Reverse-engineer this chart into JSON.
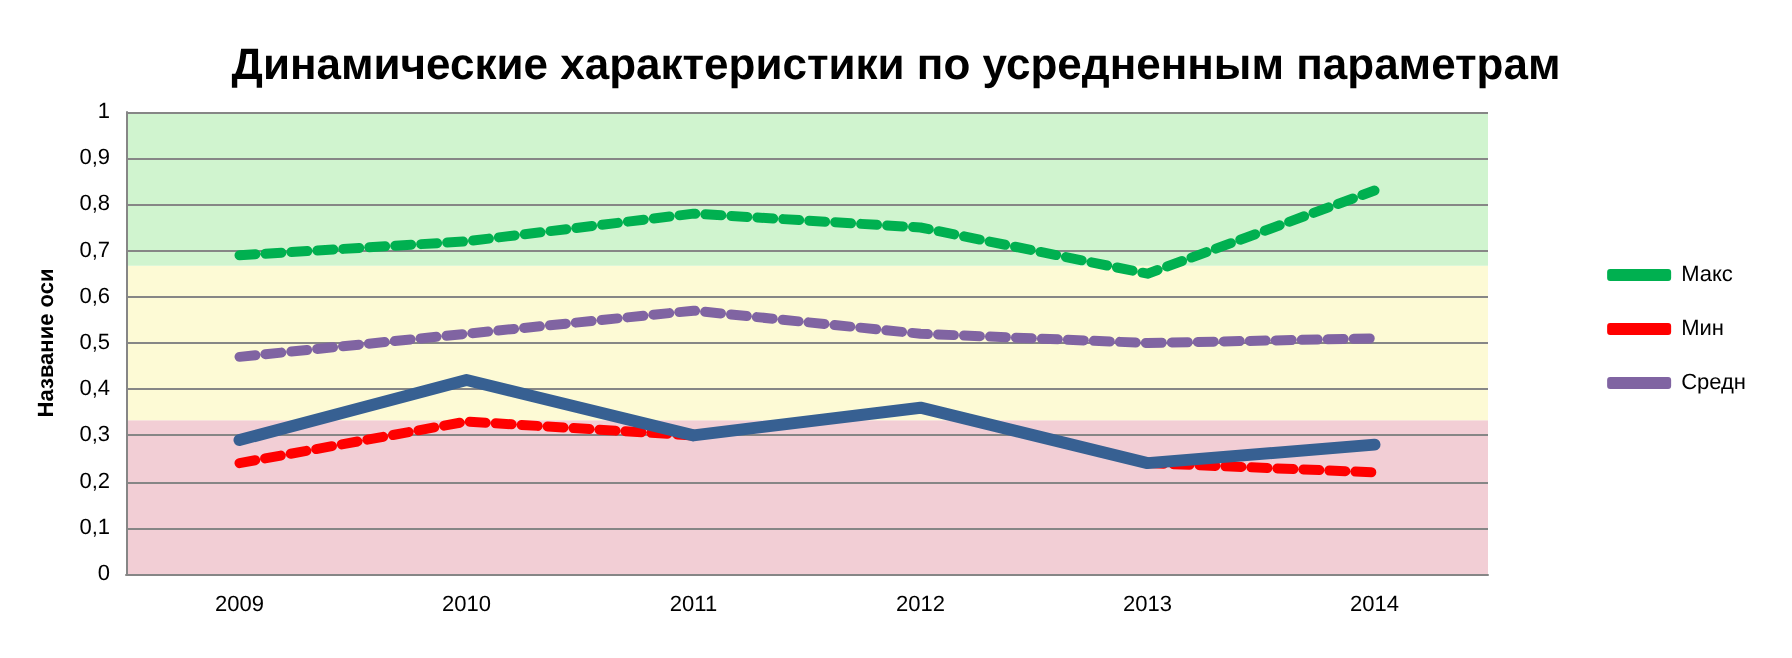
{
  "chart_data": {
    "type": "line",
    "title": "Динамические характеристики по усредненным параметрам",
    "ylabel": "Название оси",
    "categories": [
      "2009",
      "2010",
      "2011",
      "2012",
      "2013",
      "2014"
    ],
    "series": [
      {
        "name": "Макс",
        "color": "#00b050",
        "line_style": "dashed",
        "values": [
          0.69,
          0.72,
          0.78,
          0.75,
          0.65,
          0.83
        ]
      },
      {
        "name": "Мин",
        "color": "#ff0000",
        "line_style": "dashed",
        "values": [
          0.24,
          0.33,
          0.3,
          null,
          0.24,
          0.22
        ]
      },
      {
        "name": "Средн",
        "color": "#8064a2",
        "line_style": "dashed",
        "values": [
          0.47,
          0.52,
          0.57,
          0.52,
          0.5,
          0.51
        ]
      },
      {
        "color": "#376092",
        "line_style": "solid",
        "values": [
          0.29,
          0.42,
          0.3,
          0.36,
          0.24,
          0.28
        ]
      }
    ],
    "ylim": [
      0,
      1
    ],
    "yticks": [
      0,
      {
        "value": 0.1,
        "label": "0,1"
      },
      {
        "value": 0.2,
        "label": "0,2"
      },
      {
        "value": 0.3,
        "label": "0,3"
      },
      {
        "value": 0.4,
        "label": "0,4"
      },
      {
        "value": 0.5,
        "label": "0,5"
      },
      {
        "value": 0.6,
        "label": "0,6"
      },
      {
        "value": 0.7,
        "label": "0,7"
      },
      {
        "value": 0.8,
        "label": "0,8"
      },
      {
        "value": 0.9,
        "label": "0,9"
      },
      1
    ],
    "bands": [
      {
        "axis": "y",
        "from": 0,
        "to": 0.333,
        "color": "#f2ced5"
      },
      {
        "axis": "y",
        "from": 0.333,
        "to": 0.667,
        "color": "#fdfad5"
      },
      {
        "axis": "y",
        "from": 0.667,
        "to": 1,
        "color": "#d0f4cf"
      }
    ],
    "grid": "y",
    "legend": "right",
    "marker": "none"
  }
}
